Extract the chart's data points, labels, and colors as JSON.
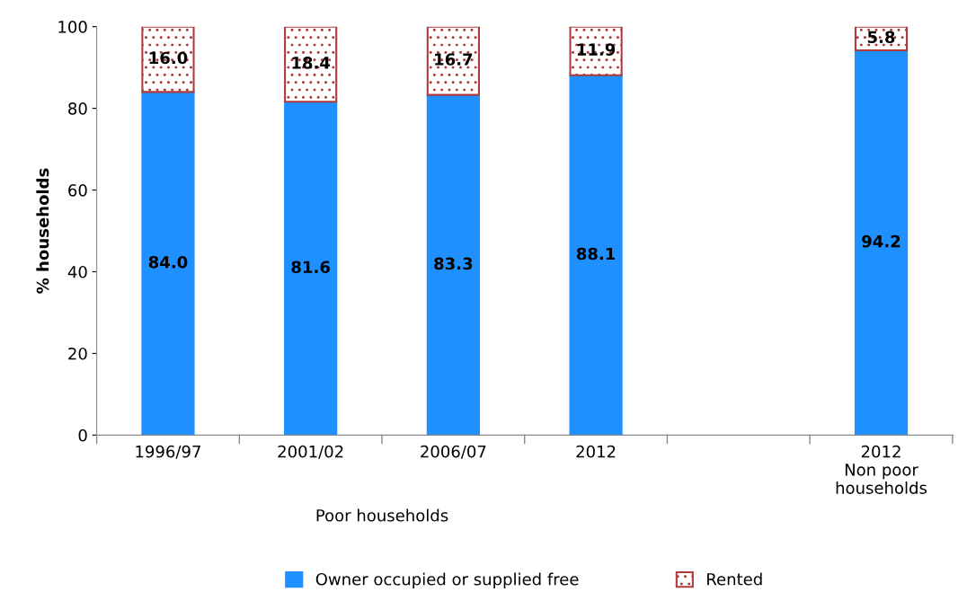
{
  "chart_data": {
    "type": "bar",
    "stacked": true,
    "ylabel": "% households",
    "categories": [
      "1996/97",
      "2001/02",
      "2006/07",
      "2012",
      null,
      "2012\nNon poor\nhouseholds"
    ],
    "series": [
      {
        "name": "Owner occupied or supplied free",
        "color": "#1e90ff",
        "values": [
          84.0,
          81.6,
          83.3,
          88.1,
          null,
          94.2
        ],
        "value_labels": [
          "84.0",
          "81.6",
          "83.3",
          "88.1",
          null,
          "94.2"
        ]
      },
      {
        "name": "Rented",
        "color": "#b03a3a",
        "values": [
          16.0,
          18.4,
          16.7,
          11.9,
          null,
          5.8
        ],
        "value_labels": [
          "16.0",
          "18.4",
          "16.7",
          "11.9",
          null,
          "5.8"
        ]
      }
    ],
    "ylim": [
      0,
      100
    ],
    "yticks": [
      0,
      20,
      40,
      60,
      80,
      100
    ],
    "grid": false,
    "legend": "bottom",
    "annotations": [
      "Poor households"
    ]
  }
}
